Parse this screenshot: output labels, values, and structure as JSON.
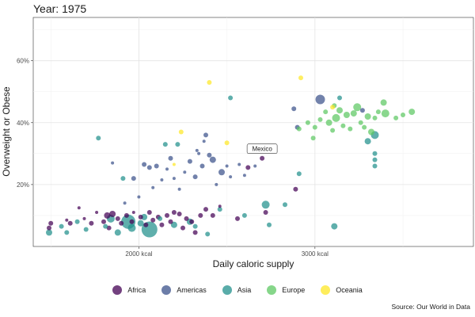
{
  "title": "Year: 1975",
  "caption": "Source: Our World in Data",
  "colors": {
    "Africa": "#440154",
    "Americas": "#3b528b",
    "Asia": "#21908c",
    "Europe": "#5dc863",
    "Oceania": "#fde725"
  },
  "chart_data": {
    "type": "scatter",
    "xlabel": "Daily caloric supply",
    "ylabel": "Overweight or Obese",
    "xlim": [
      1400,
      3900
    ],
    "ylim": [
      0,
      74
    ],
    "xticks": [
      {
        "value": 2000,
        "label": "2000 kcal"
      },
      {
        "value": 3000,
        "label": "3000 kcal"
      }
    ],
    "yticks": [
      {
        "value": 20,
        "label": "20%"
      },
      {
        "value": 40,
        "label": "40%"
      },
      {
        "value": 60,
        "label": "60%"
      }
    ],
    "grid": true,
    "legend_position": "bottom",
    "annotations": [
      {
        "label": "Mexico",
        "x": 2700,
        "y": 28.5
      }
    ],
    "series": [
      {
        "name": "Africa",
        "points": [
          {
            "x": 1490,
            "y": 6.0,
            "s": 3
          },
          {
            "x": 1500,
            "y": 7.5,
            "s": 3
          },
          {
            "x": 1590,
            "y": 8.5,
            "s": 2
          },
          {
            "x": 1610,
            "y": 7.5,
            "s": 3
          },
          {
            "x": 1660,
            "y": 12.5,
            "s": 2
          },
          {
            "x": 1690,
            "y": 9.0,
            "s": 2
          },
          {
            "x": 1730,
            "y": 7.5,
            "s": 3
          },
          {
            "x": 1760,
            "y": 11.0,
            "s": 2
          },
          {
            "x": 1800,
            "y": 8.0,
            "s": 3
          },
          {
            "x": 1820,
            "y": 10.0,
            "s": 4
          },
          {
            "x": 1830,
            "y": 6.0,
            "s": 3
          },
          {
            "x": 1850,
            "y": 10.5,
            "s": 4
          },
          {
            "x": 1880,
            "y": 9.0,
            "s": 3
          },
          {
            "x": 1900,
            "y": 7.5,
            "s": 3
          },
          {
            "x": 1930,
            "y": 10.0,
            "s": 3
          },
          {
            "x": 1960,
            "y": 8.0,
            "s": 3
          },
          {
            "x": 1970,
            "y": 11.0,
            "s": 2
          },
          {
            "x": 2010,
            "y": 9.5,
            "s": 3
          },
          {
            "x": 2040,
            "y": 7.0,
            "s": 3
          },
          {
            "x": 2060,
            "y": 11.0,
            "s": 3
          },
          {
            "x": 2080,
            "y": 8.5,
            "s": 3
          },
          {
            "x": 2110,
            "y": 9.5,
            "s": 3
          },
          {
            "x": 2130,
            "y": 7.0,
            "s": 3
          },
          {
            "x": 2160,
            "y": 10.0,
            "s": 3
          },
          {
            "x": 2180,
            "y": 8.0,
            "s": 3
          },
          {
            "x": 2200,
            "y": 11.0,
            "s": 3
          },
          {
            "x": 2230,
            "y": 10.5,
            "s": 3
          },
          {
            "x": 2250,
            "y": 6.0,
            "s": 3
          },
          {
            "x": 2270,
            "y": 9.0,
            "s": 3
          },
          {
            "x": 2300,
            "y": 8.0,
            "s": 3
          },
          {
            "x": 2320,
            "y": 4.5,
            "s": 3
          },
          {
            "x": 2350,
            "y": 10.0,
            "s": 3
          },
          {
            "x": 2380,
            "y": 12.0,
            "s": 3
          },
          {
            "x": 2420,
            "y": 10.0,
            "s": 3
          },
          {
            "x": 2460,
            "y": 13.0,
            "s": 2
          },
          {
            "x": 2560,
            "y": 9.0,
            "s": 3
          },
          {
            "x": 2620,
            "y": 25.5,
            "s": 3
          },
          {
            "x": 2700,
            "y": 28.5,
            "s": 3
          },
          {
            "x": 2720,
            "y": 11.0,
            "s": 3
          },
          {
            "x": 2890,
            "y": 18.5,
            "s": 3
          }
        ]
      },
      {
        "name": "Americas",
        "points": [
          {
            "x": 1850,
            "y": 27.0,
            "s": 2
          },
          {
            "x": 1920,
            "y": 14.0,
            "s": 2
          },
          {
            "x": 1970,
            "y": 22.0,
            "s": 3
          },
          {
            "x": 2000,
            "y": 16.0,
            "s": 2
          },
          {
            "x": 2030,
            "y": 26.5,
            "s": 3
          },
          {
            "x": 2060,
            "y": 25.5,
            "s": 3
          },
          {
            "x": 2080,
            "y": 19.0,
            "s": 2
          },
          {
            "x": 2100,
            "y": 26.0,
            "s": 3
          },
          {
            "x": 2130,
            "y": 21.5,
            "s": 2
          },
          {
            "x": 2160,
            "y": 25.0,
            "s": 2
          },
          {
            "x": 2180,
            "y": 28.5,
            "s": 3
          },
          {
            "x": 2200,
            "y": 22.0,
            "s": 2
          },
          {
            "x": 2230,
            "y": 18.5,
            "s": 2
          },
          {
            "x": 2260,
            "y": 24.0,
            "s": 2
          },
          {
            "x": 2290,
            "y": 27.5,
            "s": 3
          },
          {
            "x": 2320,
            "y": 22.5,
            "s": 3
          },
          {
            "x": 2340,
            "y": 30.0,
            "s": 2
          },
          {
            "x": 2360,
            "y": 26.0,
            "s": 3
          },
          {
            "x": 2380,
            "y": 36.0,
            "s": 3
          },
          {
            "x": 2400,
            "y": 29.5,
            "s": 3
          },
          {
            "x": 2420,
            "y": 28.0,
            "s": 4
          },
          {
            "x": 2440,
            "y": 20.0,
            "s": 2
          },
          {
            "x": 2470,
            "y": 24.0,
            "s": 4
          },
          {
            "x": 2500,
            "y": 26.0,
            "s": 2
          },
          {
            "x": 2520,
            "y": 22.5,
            "s": 2
          },
          {
            "x": 2570,
            "y": 26.5,
            "s": 2
          },
          {
            "x": 2600,
            "y": 23.0,
            "s": 2
          },
          {
            "x": 2660,
            "y": 26.0,
            "s": 2
          },
          {
            "x": 2900,
            "y": 38.5,
            "s": 3
          },
          {
            "x": 2880,
            "y": 44.5,
            "s": 3
          },
          {
            "x": 3030,
            "y": 47.5,
            "s": 6
          },
          {
            "x": 3270,
            "y": 44.0,
            "s": 3
          },
          {
            "x": 2370,
            "y": 34.0,
            "s": 2
          },
          {
            "x": 2330,
            "y": 31.0,
            "s": 2
          }
        ]
      },
      {
        "name": "Asia",
        "points": [
          {
            "x": 1490,
            "y": 4.5,
            "s": 4
          },
          {
            "x": 1560,
            "y": 6.5,
            "s": 3
          },
          {
            "x": 1590,
            "y": 4.5,
            "s": 3
          },
          {
            "x": 1650,
            "y": 8.0,
            "s": 3
          },
          {
            "x": 1700,
            "y": 5.5,
            "s": 3
          },
          {
            "x": 1770,
            "y": 35.0,
            "s": 3
          },
          {
            "x": 1810,
            "y": 6.5,
            "s": 3
          },
          {
            "x": 1840,
            "y": 9.0,
            "s": 5
          },
          {
            "x": 1880,
            "y": 4.5,
            "s": 4
          },
          {
            "x": 1910,
            "y": 22.0,
            "s": 3
          },
          {
            "x": 1940,
            "y": 8.0,
            "s": 9
          },
          {
            "x": 1960,
            "y": 6.0,
            "s": 5
          },
          {
            "x": 2010,
            "y": 7.5,
            "s": 4
          },
          {
            "x": 2030,
            "y": 9.5,
            "s": 4
          },
          {
            "x": 2060,
            "y": 5.5,
            "s": 10
          },
          {
            "x": 2120,
            "y": 9.0,
            "s": 3
          },
          {
            "x": 2150,
            "y": 33.0,
            "s": 3
          },
          {
            "x": 2200,
            "y": 7.0,
            "s": 4
          },
          {
            "x": 2220,
            "y": 33.0,
            "s": 3
          },
          {
            "x": 2290,
            "y": 8.0,
            "s": 4
          },
          {
            "x": 2320,
            "y": 6.5,
            "s": 3
          },
          {
            "x": 2390,
            "y": 4.0,
            "s": 3
          },
          {
            "x": 2460,
            "y": 12.0,
            "s": 3
          },
          {
            "x": 2520,
            "y": 48.0,
            "s": 3
          },
          {
            "x": 2600,
            "y": 10.0,
            "s": 3
          },
          {
            "x": 2720,
            "y": 13.5,
            "s": 5
          },
          {
            "x": 2740,
            "y": 7.0,
            "s": 3
          },
          {
            "x": 2830,
            "y": 13.5,
            "s": 3
          },
          {
            "x": 2910,
            "y": 23.5,
            "s": 3
          },
          {
            "x": 3110,
            "y": 6.5,
            "s": 4
          },
          {
            "x": 3140,
            "y": 48.0,
            "s": 3
          },
          {
            "x": 3300,
            "y": 34.0,
            "s": 4
          },
          {
            "x": 3340,
            "y": 36.0,
            "s": 5
          },
          {
            "x": 3340,
            "y": 30.0,
            "s": 3
          },
          {
            "x": 3340,
            "y": 28.0,
            "s": 3
          },
          {
            "x": 3340,
            "y": 26.0,
            "s": 3
          }
        ]
      },
      {
        "name": "Europe",
        "points": [
          {
            "x": 2910,
            "y": 38.0,
            "s": 3
          },
          {
            "x": 2960,
            "y": 40.0,
            "s": 3
          },
          {
            "x": 2990,
            "y": 35.0,
            "s": 3
          },
          {
            "x": 3000,
            "y": 38.5,
            "s": 3
          },
          {
            "x": 3030,
            "y": 41.0,
            "s": 3
          },
          {
            "x": 3060,
            "y": 43.5,
            "s": 3
          },
          {
            "x": 3080,
            "y": 40.0,
            "s": 4
          },
          {
            "x": 3100,
            "y": 37.5,
            "s": 3
          },
          {
            "x": 3110,
            "y": 45.5,
            "s": 3
          },
          {
            "x": 3120,
            "y": 41.5,
            "s": 5
          },
          {
            "x": 3140,
            "y": 44.0,
            "s": 4
          },
          {
            "x": 3160,
            "y": 39.0,
            "s": 3
          },
          {
            "x": 3180,
            "y": 42.5,
            "s": 4
          },
          {
            "x": 3200,
            "y": 38.0,
            "s": 3
          },
          {
            "x": 3220,
            "y": 43.0,
            "s": 4
          },
          {
            "x": 3240,
            "y": 45.0,
            "s": 5
          },
          {
            "x": 3260,
            "y": 40.0,
            "s": 3
          },
          {
            "x": 3280,
            "y": 38.5,
            "s": 3
          },
          {
            "x": 3300,
            "y": 42.0,
            "s": 4
          },
          {
            "x": 3320,
            "y": 37.0,
            "s": 4
          },
          {
            "x": 3340,
            "y": 41.5,
            "s": 3
          },
          {
            "x": 3360,
            "y": 43.5,
            "s": 3
          },
          {
            "x": 3390,
            "y": 46.5,
            "s": 4
          },
          {
            "x": 3400,
            "y": 43.0,
            "s": 5
          },
          {
            "x": 3460,
            "y": 41.5,
            "s": 3
          },
          {
            "x": 3500,
            "y": 42.5,
            "s": 3
          },
          {
            "x": 3550,
            "y": 43.5,
            "s": 4
          }
        ]
      },
      {
        "name": "Oceania",
        "points": [
          {
            "x": 2200,
            "y": 26.5,
            "s": 2
          },
          {
            "x": 2240,
            "y": 37.0,
            "s": 3
          },
          {
            "x": 2400,
            "y": 53.0,
            "s": 3
          },
          {
            "x": 2500,
            "y": 33.5,
            "s": 3
          },
          {
            "x": 2920,
            "y": 54.5,
            "s": 3
          },
          {
            "x": 3100,
            "y": 45.0,
            "s": 3
          }
        ]
      }
    ]
  }
}
